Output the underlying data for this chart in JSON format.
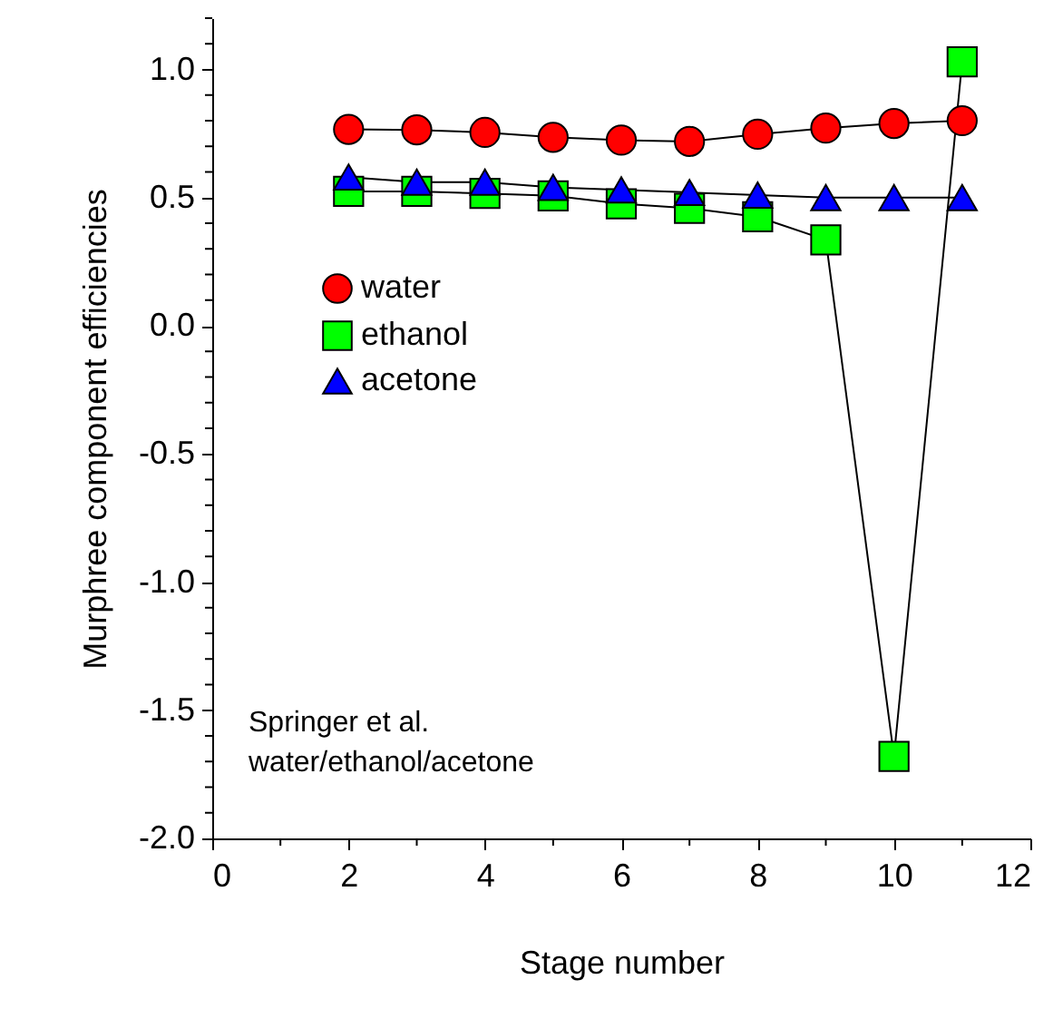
{
  "chart_data": {
    "type": "line",
    "xlabel": "Stage number",
    "ylabel": "Murphree component efficiencies",
    "x": [
      2,
      3,
      4,
      5,
      6,
      7,
      8,
      9,
      10,
      11
    ],
    "series": [
      {
        "name": "water",
        "color": "#ff0000",
        "marker": "circle",
        "values": [
          0.766,
          0.764,
          0.754,
          0.735,
          0.724,
          0.719,
          0.747,
          0.771,
          0.789,
          0.8
        ]
      },
      {
        "name": "ethanol",
        "color": "#00ff00",
        "marker": "square",
        "values": [
          0.524,
          0.524,
          0.516,
          0.507,
          0.476,
          0.458,
          0.425,
          0.335,
          -1.68,
          1.03
        ]
      },
      {
        "name": "acetone",
        "color": "#0000ff",
        "marker": "triangle",
        "values": [
          0.58,
          0.56,
          0.56,
          0.54,
          0.53,
          0.52,
          0.51,
          0.5,
          0.5,
          0.5
        ]
      }
    ],
    "xlim": [
      0,
      12
    ],
    "ylim": [
      -2.0,
      1.2
    ],
    "xticks": [
      0,
      {
        "value": 1,
        "label": null
      },
      2,
      {
        "value": 3,
        "label": null
      },
      4,
      {
        "value": 5,
        "label": null
      },
      6,
      {
        "value": 7,
        "label": null
      },
      8,
      {
        "value": 9,
        "label": null
      },
      10,
      {
        "value": 11,
        "label": null
      },
      12
    ],
    "yticks": [
      {
        "value": -2.0,
        "label": "-2.0"
      },
      {
        "value": -1.9,
        "label": null
      },
      {
        "value": -1.8,
        "label": null
      },
      {
        "value": -1.7,
        "label": null
      },
      {
        "value": -1.6,
        "label": null
      },
      {
        "value": -1.5,
        "label": "-1.5"
      },
      {
        "value": -1.4,
        "label": null
      },
      {
        "value": -1.3,
        "label": null
      },
      {
        "value": -1.2,
        "label": null
      },
      {
        "value": -1.1,
        "label": null
      },
      {
        "value": -1.0,
        "label": "-1.0"
      },
      {
        "value": -0.9,
        "label": null
      },
      {
        "value": -0.8,
        "label": null
      },
      {
        "value": -0.7,
        "label": null
      },
      {
        "value": -0.6,
        "label": null
      },
      {
        "value": -0.5,
        "label": "-0.5"
      },
      {
        "value": -0.4,
        "label": null
      },
      {
        "value": -0.3,
        "label": null
      },
      {
        "value": -0.2,
        "label": null
      },
      {
        "value": -0.1,
        "label": null
      },
      {
        "value": 0.0,
        "label": "0.0"
      },
      {
        "value": 0.1,
        "label": null
      },
      {
        "value": 0.2,
        "label": null
      },
      {
        "value": 0.3,
        "label": null
      },
      {
        "value": 0.4,
        "label": null
      },
      {
        "value": 0.5,
        "label": "0.5"
      },
      {
        "value": 0.6,
        "label": null
      },
      {
        "value": 0.7,
        "label": null
      },
      {
        "value": 0.8,
        "label": null
      },
      {
        "value": 0.9,
        "label": null
      },
      {
        "value": 1.0,
        "label": "1.0"
      },
      {
        "value": 1.1,
        "label": null
      },
      {
        "value": 1.2,
        "label": null
      }
    ],
    "grid": false,
    "legend": "left",
    "line_style": "solid",
    "annotations": [
      "Springer et al.\nwater/ethanol/acetone"
    ]
  }
}
